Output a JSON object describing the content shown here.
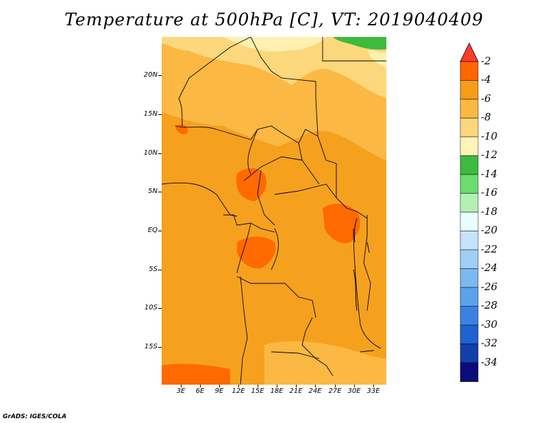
{
  "title": "Temperature at 500hPa [C], VT: 2019040409",
  "credit": "GrADS: IGES/COLA",
  "map": {
    "lat_labels": [
      "20N",
      "15N",
      "10N",
      "5N",
      "EQ",
      "5S",
      "10S",
      "15S"
    ],
    "lon_labels": [
      "3E",
      "6E",
      "9E",
      "12E",
      "15E",
      "18E",
      "21E",
      "24E",
      "27E",
      "30E",
      "33E"
    ],
    "shading_colors": {
      "-2_to_-4": "#ff6a00",
      "-4_to_-6": "#f5a11e",
      "-6_to_-8": "#fbb843",
      "-8_to_-10": "#fdd77c",
      "-10_to_-12": "#fef0b0",
      "-12_to_-14": "#3cbb3c"
    }
  },
  "colorbar": {
    "levels": [
      "-2",
      "-4",
      "-6",
      "-8",
      "-10",
      "-12",
      "-14",
      "-16",
      "-18",
      "-20",
      "-22",
      "-24",
      "-26",
      "-28",
      "-30",
      "-32",
      "-34"
    ],
    "top_arrow_color": "#ff3c2a",
    "bottom_arrow_color": "#e5e5f7",
    "segment_colors": [
      "#ff6600",
      "#f59c19",
      "#fbb843",
      "#fdd77c",
      "#fef3b8",
      "#3cbb3c",
      "#6edb6e",
      "#b4f0b4",
      "#e8fdfd",
      "#c5e4fb",
      "#9fcff6",
      "#7cb9f0",
      "#5aa2ea",
      "#3b82e0",
      "#1f62d1",
      "#1240a8",
      "#0a0c7a"
    ]
  }
}
